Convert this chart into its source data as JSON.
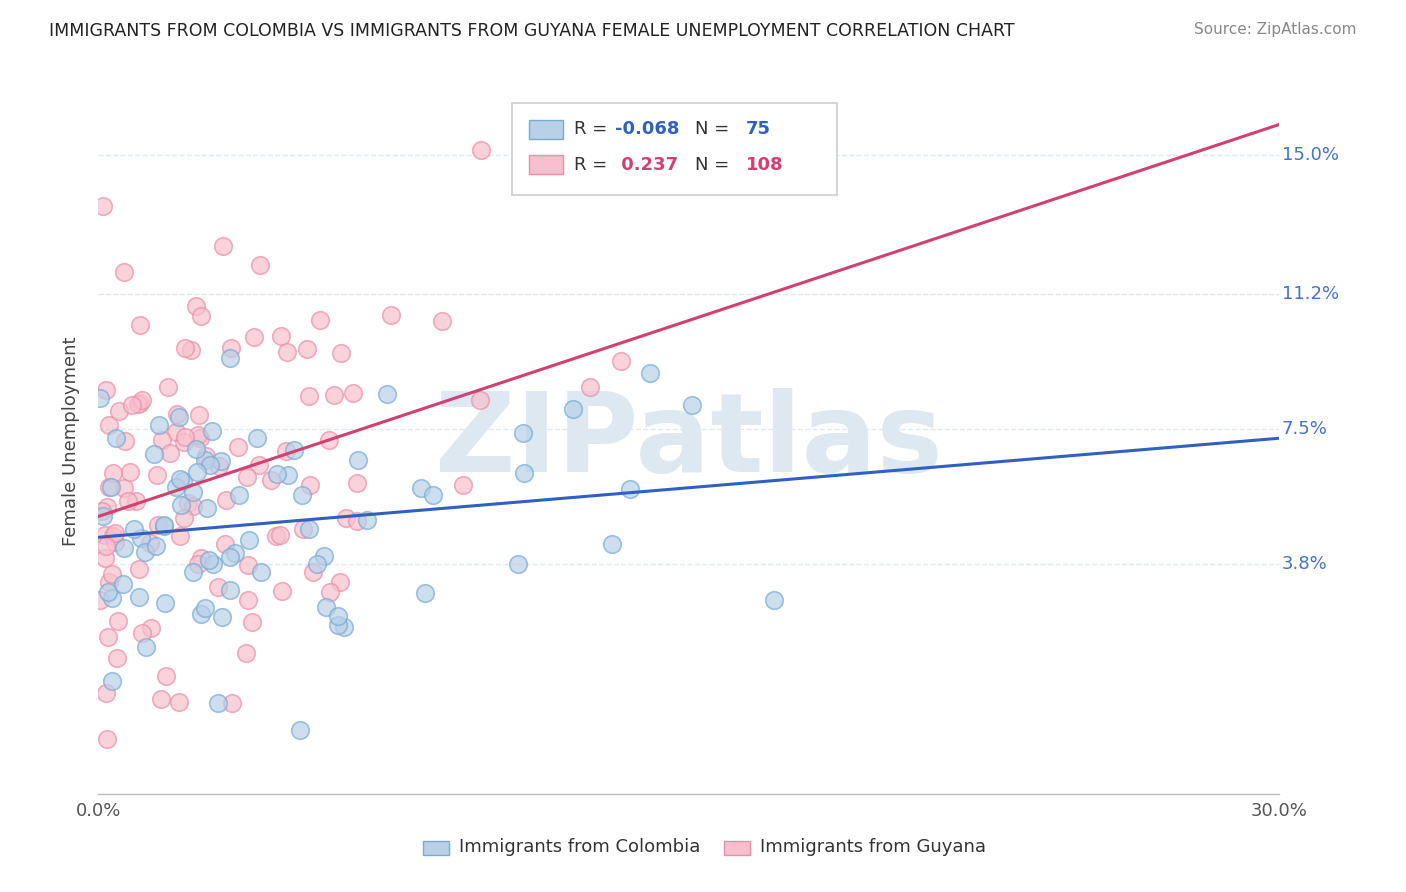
{
  "title": "IMMIGRANTS FROM COLOMBIA VS IMMIGRANTS FROM GUYANA FEMALE UNEMPLOYMENT CORRELATION CHART",
  "source": "Source: ZipAtlas.com",
  "xlabel_colombia": "Immigrants from Colombia",
  "xlabel_guyana": "Immigrants from Guyana",
  "ylabel": "Female Unemployment",
  "xlim": [
    0.0,
    0.3
  ],
  "ylim": [
    -0.025,
    0.168
  ],
  "yticks": [
    0.038,
    0.075,
    0.112,
    0.15
  ],
  "ytick_labels": [
    "3.8%",
    "7.5%",
    "11.2%",
    "15.0%"
  ],
  "R_colombia": -0.068,
  "N_colombia": 75,
  "R_guyana": 0.237,
  "N_guyana": 108,
  "color_colombia_fill": "#b8d0e8",
  "color_colombia_edge": "#7aaad0",
  "color_guyana_fill": "#f8c0ce",
  "color_guyana_edge": "#e890a8",
  "line_color_colombia": "#3060c0",
  "line_color_guyana": "#d04070",
  "watermark_color": "#dde8f0",
  "background_color": "#ffffff",
  "grid_color": "#dde8f0",
  "legend_box_color": "#cccccc",
  "title_color": "#222222",
  "source_color": "#888888",
  "axis_label_color": "#444444",
  "tick_label_color": "#555555",
  "right_tick_color": "#4472c4"
}
